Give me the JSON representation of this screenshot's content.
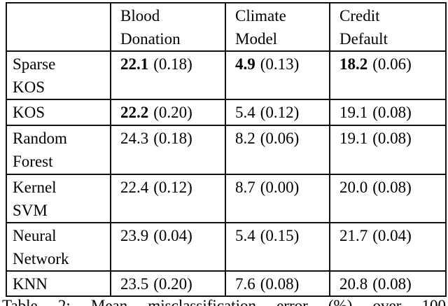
{
  "table": {
    "corner": "",
    "columns": [
      "Blood\nDonation",
      "Climate\nModel",
      "Credit\nDefault"
    ],
    "rows": [
      {
        "label": "Sparse\nKOS",
        "cells": [
          {
            "value": "22.1",
            "se": "(0.18)",
            "bold": true
          },
          {
            "value": "4.9",
            "se": "(0.13)",
            "bold": true
          },
          {
            "value": "18.2",
            "se": "(0.06)",
            "bold": true
          }
        ]
      },
      {
        "label": "KOS",
        "cells": [
          {
            "value": "22.2",
            "se": "(0.20)",
            "bold": true
          },
          {
            "value": "5.4",
            "se": "(0.12)",
            "bold": false
          },
          {
            "value": "19.1",
            "se": "(0.08)",
            "bold": false
          }
        ]
      },
      {
        "label": "Random\nForest",
        "cells": [
          {
            "value": "24.3",
            "se": "(0.18)",
            "bold": false
          },
          {
            "value": "8.2",
            "se": "(0.06)",
            "bold": false
          },
          {
            "value": "19.1",
            "se": "(0.08)",
            "bold": false
          }
        ]
      },
      {
        "label": "Kernel\nSVM",
        "cells": [
          {
            "value": "22.4",
            "se": "(0.12)",
            "bold": false
          },
          {
            "value": "8.7",
            "se": "(0.00)",
            "bold": false
          },
          {
            "value": "20.0",
            "se": "(0.08)",
            "bold": false
          }
        ]
      },
      {
        "label": "Neural\nNetwork",
        "cells": [
          {
            "value": "23.9",
            "se": "(0.04)",
            "bold": false
          },
          {
            "value": "5.4",
            "se": "(0.15)",
            "bold": false
          },
          {
            "value": "21.7",
            "se": "(0.04)",
            "bold": false
          }
        ]
      },
      {
        "label": "KNN",
        "cells": [
          {
            "value": "23.5",
            "se": "(0.20)",
            "bold": false
          },
          {
            "value": "7.6",
            "se": "(0.08)",
            "bold": false
          },
          {
            "value": "20.8",
            "se": "(0.08)",
            "bold": false
          }
        ]
      }
    ]
  },
  "caption": {
    "visible_text": "Table 2: Mean misclassification error (%) over 100"
  }
}
